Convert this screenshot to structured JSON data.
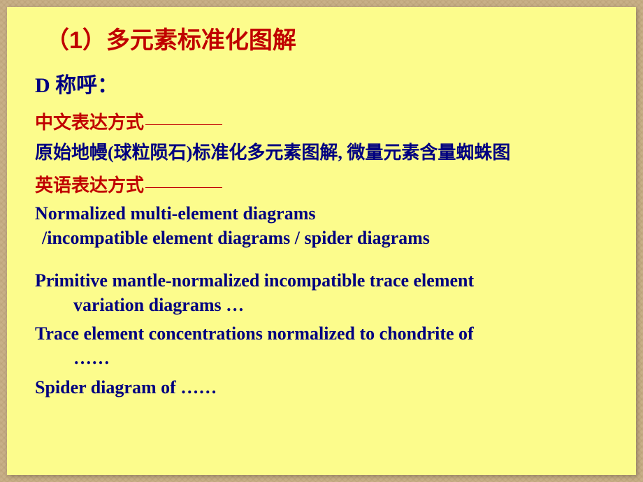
{
  "colors": {
    "page_background": "#c8b088",
    "slide_background": "#fcfc8c",
    "title_color": "#c00000",
    "label_color": "#c00000",
    "body_color": "#000080"
  },
  "title": "（1）多元素标准化图解",
  "section_d": "D  称呼：",
  "chinese_label": "中文表达方式",
  "chinese_desc": "原始地幔(球粒陨石)标准化多元素图解, 微量元素含量蜘蛛图",
  "english_label": "英语表达方式",
  "english_block1_line1": "Normalized multi-element diagrams",
  "english_block1_line2": " /incompatible element diagrams / spider diagrams",
  "english_block2_line1": "Primitive mantle-normalized incompatible trace element",
  "english_block2_line2": "variation diagrams …",
  "english_block3_line1": "Trace element concentrations normalized to chondrite of",
  "english_block3_line2": "……",
  "english_block4": "Spider diagram of ……",
  "fonts": {
    "title_size_pt": 26,
    "body_size_pt": 20,
    "title_family": "SimHei",
    "body_family_cn": "SimSun",
    "body_family_en": "Times New Roman",
    "weight": "bold"
  }
}
